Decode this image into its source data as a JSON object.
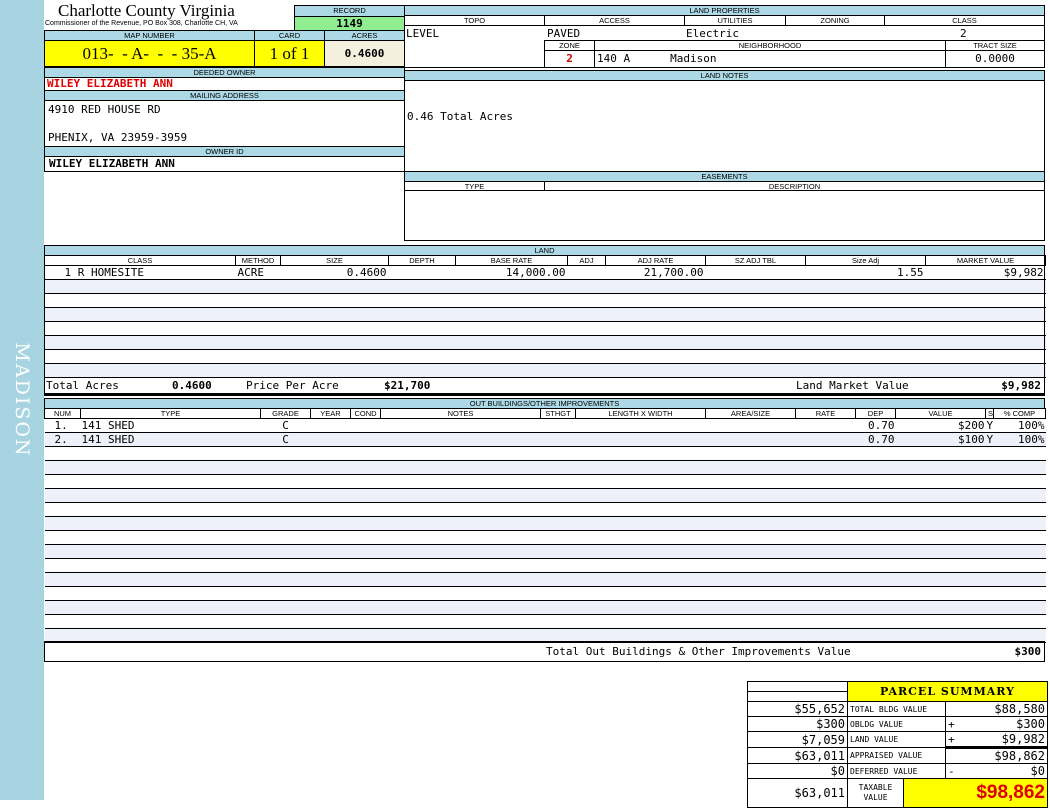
{
  "sidebar": {
    "label": "MADISON"
  },
  "header": {
    "title": "Charlotte County Virginia",
    "subtitle": "Commissioner of the Revenue, PO Box 308, Charlotte CH, VA"
  },
  "record": {
    "label": "RECORD",
    "value": "1149"
  },
  "map": {
    "map_label": "MAP NUMBER",
    "map_value": "013-  - A-  -  - 35-A",
    "card_label": "CARD",
    "card_value": "1 of 1",
    "acres_label": "ACRES",
    "acres_value": "0.4600"
  },
  "owner": {
    "deeded_label": "DEEDED OWNER",
    "deeded_value": "WILEY ELIZABETH ANN",
    "mailing_label": "MAILING ADDRESS",
    "address_line1": "4910 RED HOUSE RD",
    "address_line2": "PHENIX, VA 23959-3959",
    "owner_id_label": "OWNER ID",
    "owner_id_value": "WILEY ELIZABETH ANN"
  },
  "land_properties": {
    "title": "LAND PROPERTIES",
    "topo_label": "TOPO",
    "access_label": "ACCESS",
    "utilities_label": "UTILITIES",
    "zoning_label": "ZONING",
    "class_label": "CLASS",
    "topo": "LEVEL",
    "access": "PAVED",
    "utilities": "Electric",
    "zoning": "",
    "class": "2",
    "zone_label": "ZONE",
    "neighborhood_label": "NEIGHBORHOOD",
    "tract_label": "TRACT SIZE",
    "zone": "2",
    "neighborhood_code": "140 A",
    "neighborhood": "Madison",
    "tract_size": "0.0000"
  },
  "land_notes": {
    "title": "LAND NOTES",
    "text": "0.46 Total Acres"
  },
  "easements": {
    "title": "EASEMENTS",
    "type_label": "TYPE",
    "description_label": "DESCRIPTION"
  },
  "land": {
    "title": "LAND",
    "columns": [
      "CLASS",
      "METHOD",
      "SIZE",
      "DEPTH",
      "BASE RATE",
      "ADJ",
      "ADJ RATE",
      "SZ ADJ TBL",
      "Size Adj",
      "MARKET VALUE"
    ],
    "rows": [
      [
        "1 R HOMESITE",
        "ACRE",
        "0.4600",
        "",
        "14,000.00",
        "",
        "21,700.00",
        "",
        "1.55",
        "$9,982"
      ]
    ],
    "total_acres_label": "Total Acres",
    "total_acres": "0.4600",
    "price_per_acre_label": "Price Per Acre",
    "price_per_acre": "$21,700",
    "market_value_label": "Land Market Value",
    "market_value": "$9,982"
  },
  "outbuildings": {
    "title": "OUT BUILDINGS/OTHER IMPROVEMENTS",
    "columns": [
      "NUM",
      "TYPE",
      "GRADE",
      "YEAR",
      "COND",
      "NOTES",
      "STHGT",
      "LENGTH X WIDTH",
      "AREA/SIZE",
      "RATE",
      "DEP",
      "VALUE",
      "S",
      "% COMP"
    ],
    "rows": [
      [
        "1.",
        "141 SHED",
        "C",
        "",
        "",
        "",
        "",
        "",
        "",
        "",
        "0.70",
        "$200",
        "Y",
        "100%"
      ],
      [
        "2.",
        "141 SHED",
        "C",
        "",
        "",
        "",
        "",
        "",
        "",
        "",
        "0.70",
        "$100",
        "Y",
        "100%"
      ]
    ],
    "total_label": "Total Out Buildings & Other Improvements Value",
    "total_value": "$300"
  },
  "summary": {
    "title": "PARCEL SUMMARY",
    "rows": [
      {
        "prior": "$55,652",
        "label": "TOTAL BLDG VALUE",
        "op": "",
        "value": "$88,580"
      },
      {
        "prior": "$300",
        "label": "OBLDG VALUE",
        "op": "+",
        "value": "$300"
      },
      {
        "prior": "$7,059",
        "label": "LAND VALUE",
        "op": "+",
        "value": "$9,982"
      },
      {
        "prior": "$63,011",
        "label": "APPRAISED VALUE",
        "op": "",
        "value": "$98,862"
      },
      {
        "prior": "$0",
        "label": "DEFERRED VALUE",
        "op": "-",
        "value": "$0"
      }
    ],
    "taxable_prior": "$63,011",
    "taxable_label": "TAXABLE VALUE",
    "taxable_value": "$98,862"
  },
  "colors": {
    "header_blue": "#add8e6",
    "record_green": "#90ee90",
    "highlight_yellow": "#ffff00",
    "owner_red": "#e00000"
  }
}
